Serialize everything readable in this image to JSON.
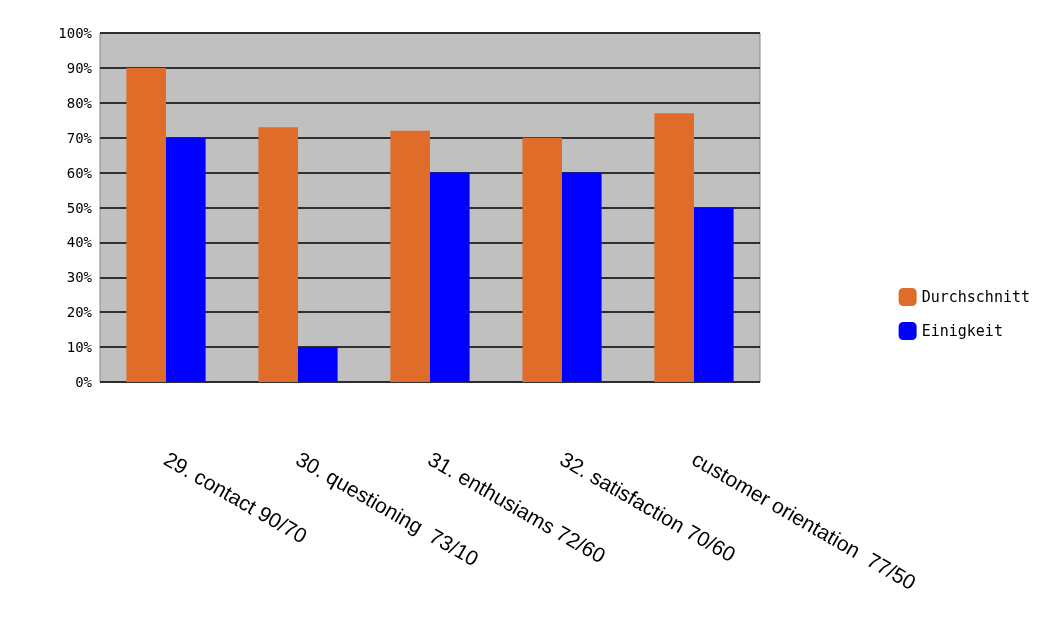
{
  "chart_data": {
    "type": "bar",
    "categories": [
      "29. contact 90/70",
      "30. questioning  73/10",
      "31. enthusiams 72/60",
      "32. satisfaction 70/60",
      "customer orientation  77/50"
    ],
    "series": [
      {
        "name": "Durchschnitt",
        "color": "#e06c2a",
        "values": [
          90,
          73,
          72,
          70,
          77
        ]
      },
      {
        "name": "Einigkeit",
        "color": "#0000ff",
        "values": [
          70,
          10,
          60,
          60,
          50
        ]
      }
    ],
    "ylim": [
      0,
      100
    ],
    "yticks": [
      {
        "value": 0,
        "label": "0%"
      },
      {
        "value": 10,
        "label": "10%"
      },
      {
        "value": 20,
        "label": "20%"
      },
      {
        "value": 30,
        "label": "30%"
      },
      {
        "value": 40,
        "label": "40%"
      },
      {
        "value": 50,
        "label": "50%"
      },
      {
        "value": 60,
        "label": "60%"
      },
      {
        "value": 70,
        "label": "70%"
      },
      {
        "value": 80,
        "label": "80%"
      },
      {
        "value": 90,
        "label": "90%"
      },
      {
        "value": 100,
        "label": "100%"
      }
    ],
    "grid": "y",
    "legend": "right"
  }
}
